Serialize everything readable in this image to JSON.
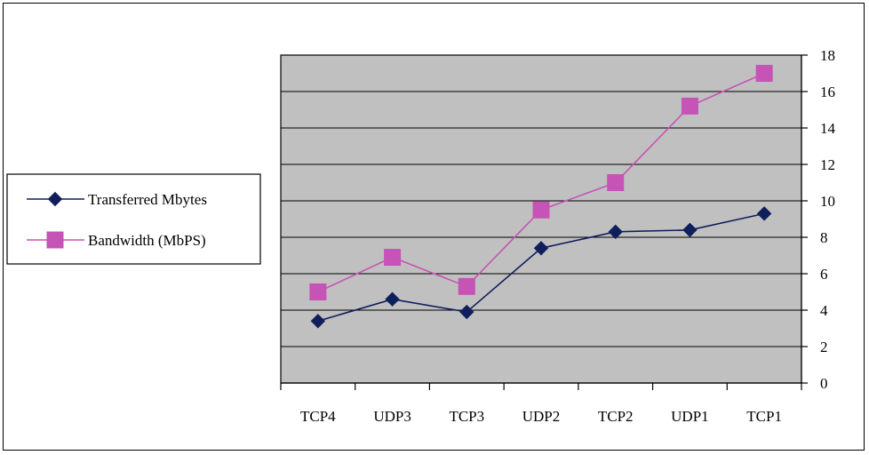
{
  "chart_data": {
    "type": "line",
    "categories": [
      "TCP4",
      "UDP3",
      "TCP3",
      "UDP2",
      "TCP2",
      "UDP1",
      "TCP1"
    ],
    "series": [
      {
        "name": "Transferred Mbytes",
        "values": [
          3.4,
          4.6,
          3.9,
          7.4,
          8.3,
          8.4,
          9.3
        ],
        "color": "#0f1f5c",
        "marker": "diamond"
      },
      {
        "name": "Bandwidth (MbPS)",
        "values": [
          5.0,
          6.9,
          5.3,
          9.5,
          11.0,
          15.2,
          17.0
        ],
        "color": "#c653b6",
        "marker": "square"
      }
    ],
    "ylim": [
      0,
      18
    ],
    "yticks": [
      "0",
      "2",
      "4",
      "6",
      "8",
      "10",
      "12",
      "14",
      "16",
      "18"
    ],
    "y_axis_side": "right",
    "grid": true,
    "plot_background": "#c0c0c0",
    "legend_position": "left",
    "title": "",
    "xlabel": "",
    "ylabel": ""
  }
}
